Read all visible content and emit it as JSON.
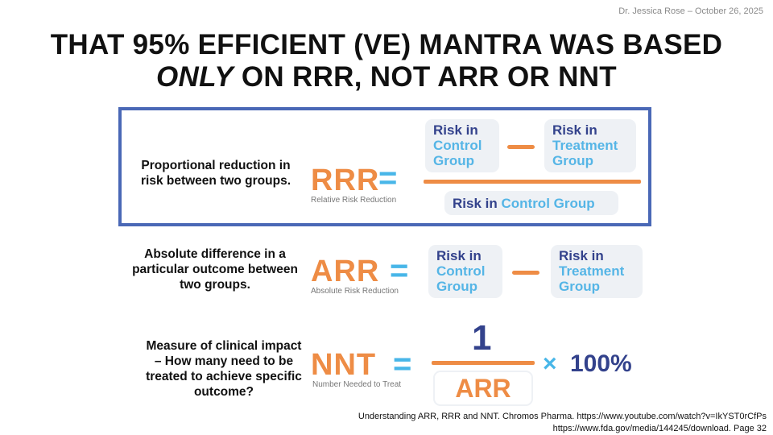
{
  "author_date": "Dr. Jessica Rose – October 26, 2025",
  "title": {
    "line1": "THAT 95% EFFICIENT (VE) MANTRA WAS BASED",
    "line2_emph": "ONLY",
    "line2_rest": " ON RRR, NOT ARR OR NNT"
  },
  "rrr": {
    "description": "Proportional reduction in risk between two groups.",
    "abbr": "RRR",
    "full_name": "Relative Risk Reduction",
    "numerator_left": {
      "dark": "Risk in",
      "light": "Control Group"
    },
    "numerator_right": {
      "dark": "Risk in",
      "light": "Treatment Group"
    },
    "denominator": {
      "dark": "Risk in",
      "light": "Control Group"
    }
  },
  "arr": {
    "description": "Absolute difference in a particular outcome between two groups.",
    "abbr": "ARR",
    "full_name": "Absolute Risk Reduction",
    "left": {
      "dark": "Risk in",
      "light": "Control Group"
    },
    "right": {
      "dark": "Risk in",
      "light": "Treatment Group"
    }
  },
  "nnt": {
    "description": "Measure of clinical impact – How many need to be treated to achieve specific outcome?",
    "abbr": "NNT",
    "full_name": "Number Needed to Treat",
    "numerator": "1",
    "denominator": "ARR",
    "multiplier": "100%"
  },
  "sources": {
    "line1": "Understanding ARR, RRR and NNT. Chromos Pharma. https://www.youtube.com/watch?v=IkYST0rCfPs",
    "line2": "https://www.fda.gov/media/144245/download. Page 32"
  },
  "colors": {
    "orange": "#ee8c45",
    "navy": "#33428c",
    "lightblue": "#55b5e6",
    "box_border": "#4a68b6"
  }
}
